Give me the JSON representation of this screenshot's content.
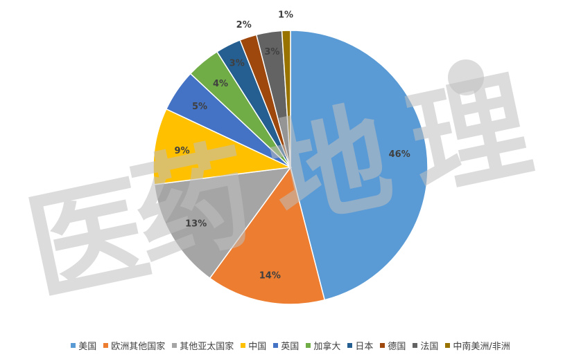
{
  "chart_data": {
    "type": "pie",
    "title": "",
    "slices": [
      {
        "label": "美国",
        "value": 46,
        "display": "46%",
        "color": "#5B9BD5"
      },
      {
        "label": "欧洲其他国家",
        "value": 14,
        "display": "14%",
        "color": "#ED7D31"
      },
      {
        "label": "其他亚太国家",
        "value": 13,
        "display": "13%",
        "color": "#A5A5A5"
      },
      {
        "label": "中国",
        "value": 9,
        "display": "9%",
        "color": "#FFC000"
      },
      {
        "label": "英国",
        "value": 5,
        "display": "5%",
        "color": "#4472C4"
      },
      {
        "label": "加拿大",
        "value": 4,
        "display": "4%",
        "color": "#70AD47"
      },
      {
        "label": "日本",
        "value": 3,
        "display": "3%",
        "color": "#255E91"
      },
      {
        "label": "德国",
        "value": 2,
        "display": "2%",
        "color": "#9E480E"
      },
      {
        "label": "法国",
        "value": 3,
        "display": "3%",
        "color": "#636363"
      },
      {
        "label": "中南美洲/非洲",
        "value": 1,
        "display": "1%",
        "color": "#997300"
      }
    ],
    "legend_position": "bottom"
  },
  "watermark": {
    "text": "医药地理",
    "color": "#BFBFBF"
  }
}
